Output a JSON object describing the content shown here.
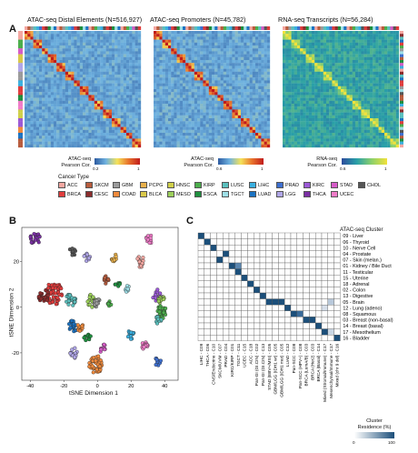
{
  "panel_a": {
    "letter": "A",
    "heatmaps": [
      {
        "title": "ATAC-seq Distal Elements (N=516,927)",
        "colorbar_title_line1": "ATAC-seq",
        "colorbar_title_line2": "Pearson Cor.",
        "colorbar_min": "0.2",
        "colorbar_max": "1",
        "palette": "atac"
      },
      {
        "title": "ATAC-seq Promoters (N=45,782)",
        "colorbar_title_line1": "ATAC-seq",
        "colorbar_title_line2": "Pearson Cor.",
        "colorbar_min": "0.6",
        "colorbar_max": "1",
        "palette": "atac"
      },
      {
        "title": "RNA-seq Transcripts (N=56,284)",
        "colorbar_title_line1": "RNA-seq",
        "colorbar_title_line2": "Pearson Cor.",
        "colorbar_min": "0.6",
        "colorbar_max": "1",
        "palette": "rna"
      }
    ],
    "cancer_type_title": "Cancer Type",
    "cancer_types": [
      {
        "name": "ACC",
        "color": "#f4a7a1"
      },
      {
        "name": "SKCM",
        "color": "#b85c3d"
      },
      {
        "name": "GBM",
        "color": "#9b9b9b"
      },
      {
        "name": "PCPG",
        "color": "#e8b04b"
      },
      {
        "name": "HNSC",
        "color": "#cfcf4a"
      },
      {
        "name": "KIRP",
        "color": "#4cae4c"
      },
      {
        "name": "LUSC",
        "color": "#5bc0be"
      },
      {
        "name": "LIHC",
        "color": "#3ab0e0"
      },
      {
        "name": "PRAD",
        "color": "#3e6fcf"
      },
      {
        "name": "KIRC",
        "color": "#9b59d6"
      },
      {
        "name": "STAD",
        "color": "#d65cc8"
      },
      {
        "name": "CHOL",
        "color": "#555555"
      },
      {
        "name": "BRCA",
        "color": "#e03c3c"
      },
      {
        "name": "CESC",
        "color": "#8b2c2c"
      },
      {
        "name": "COAD",
        "color": "#f08a3c"
      },
      {
        "name": "BLCA",
        "color": "#d9c84a"
      },
      {
        "name": "MESO",
        "color": "#9ccf5b"
      },
      {
        "name": "ESCA",
        "color": "#1f8f3f"
      },
      {
        "name": "TGCT",
        "color": "#9fe0e8"
      },
      {
        "name": "LUAD",
        "color": "#1c73c2"
      },
      {
        "name": "LGG",
        "color": "#b0a6e8"
      },
      {
        "name": "THCA",
        "color": "#7a2fa3"
      },
      {
        "name": "UCEC",
        "color": "#f07cc8"
      }
    ]
  },
  "panel_b": {
    "letter": "B",
    "xlabel": "tSNE Dimension 1",
    "ylabel": "tSNE Dimension 2",
    "x_ticks": [
      "-40",
      "-20",
      "0",
      "20",
      "40"
    ],
    "y_ticks": [
      "20",
      "0",
      "-20"
    ]
  },
  "panel_c": {
    "letter": "C",
    "legend_title": "ATAC-seq Cluster",
    "clusters": [
      "09 - Liver",
      "06 - Thyroid",
      "10 - Nerve Cell",
      "04 - Prostate",
      "07 - Skin (melan.)",
      "01 - Kidney / Bile Duct",
      "11 - Testicular",
      "15 - Uterine",
      "18 - Adrenal",
      "02 - Colon",
      "13 - Digestive",
      "05 - Brain",
      "12 - Lung (adeno)",
      "08 - Squamous",
      "03 - Breast (non-basal)",
      "14 - Breast (basal)",
      "17 - Mesothelium",
      "16 - Bladder"
    ],
    "column_labels": [
      "LIHC - C09",
      "THCA - C06",
      "CNS/Endocrine - C10",
      "SKCM/UVM - C07",
      "PRAD - C04",
      "KIRC/KIRP - C01",
      "TGCT - C11",
      "UCEC - C15",
      "ACC - C18",
      "Pan-GI (GI.CIN) - C02",
      "Pan-GI (GI.CIN) - C13",
      "STAD (EBV+/MSI) - C05",
      "GBM/LGG (IDH1 wt) - C05",
      "GBM/LGG (IDH1 mut) - C05",
      "LUAD - C12",
      "Pan-SCC - C08",
      "Pan-SCC (HPV+) - C08",
      "BRCA (LumA/B) - C03",
      "BRCA (Her2) - C03",
      "BRCA (Basal) - C14",
      "Mixed (Stromal/Immune) - C17",
      "Mesenchymal/Immune - C17",
      "Mixed (chr 9 del) - C16"
    ],
    "colorbar_title_line1": "Cluster",
    "colorbar_title_line2": "Residence (%)",
    "colorbar_min": "0",
    "colorbar_max": "100"
  }
}
